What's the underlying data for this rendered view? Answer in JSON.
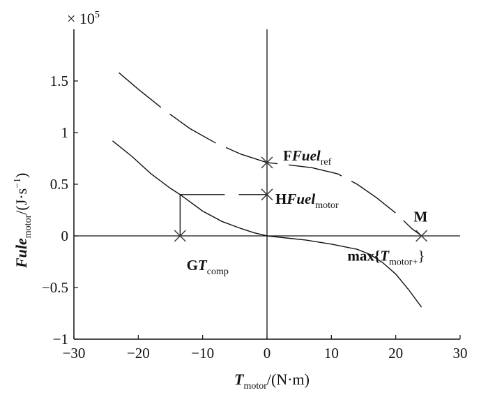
{
  "chart_data": {
    "type": "line",
    "xlabel": {
      "base": "T",
      "sub": "motor",
      "rest": "/(N·m)"
    },
    "ylabel": {
      "base": "Fule",
      "sub": "motor",
      "rest": "/(J·s",
      "sup": "−1",
      "close": ")"
    },
    "y_multiplier": {
      "prefix": "× 10",
      "exp": "5"
    },
    "xlim": [
      -30,
      30
    ],
    "ylim": [
      -1,
      2
    ],
    "x_ticks": [
      -30,
      -20,
      -10,
      0,
      10,
      20,
      30
    ],
    "x_tick_labels": [
      "−30",
      "−20",
      "−10",
      "0",
      "10",
      "20",
      "30"
    ],
    "y_ticks": [
      -1,
      -0.5,
      0,
      0.5,
      1,
      1.5
    ],
    "y_tick_labels": [
      "−1",
      "−0.5",
      "0",
      "0.5",
      "1",
      "1.5"
    ],
    "series": [
      {
        "style": "dashed",
        "x": [
          -23,
          -20,
          -16,
          -12,
          -8,
          -4,
          0,
          3,
          7,
          11,
          14,
          17,
          20,
          22.5,
          24
        ],
        "y": [
          1.58,
          1.42,
          1.22,
          1.04,
          0.9,
          0.79,
          0.71,
          0.69,
          0.66,
          0.6,
          0.5,
          0.37,
          0.22,
          0.07,
          0.0
        ]
      },
      {
        "style": "solid",
        "x": [
          -24,
          -21,
          -18,
          -15,
          -13.5,
          -10,
          -7,
          -4,
          -2,
          0,
          3,
          6,
          10,
          14,
          16,
          18,
          20,
          22,
          24
        ],
        "y": [
          0.92,
          0.77,
          0.6,
          0.46,
          0.4,
          0.24,
          0.14,
          0.07,
          0.03,
          0.0,
          -0.02,
          -0.04,
          -0.08,
          -0.13,
          -0.18,
          -0.26,
          -0.37,
          -0.52,
          -0.69
        ]
      },
      {
        "style": "dashed-segment",
        "x": [
          -13.5,
          0
        ],
        "y": [
          0.4,
          0.4
        ]
      }
    ],
    "markers": [
      {
        "x": 0,
        "y": 0.71
      },
      {
        "x": 0,
        "y": 0.4
      },
      {
        "x": -13.5,
        "y": 0.0
      },
      {
        "x": 24,
        "y": 0.0
      }
    ],
    "annotations": [
      {
        "pre": "F",
        "italic": "Fuel",
        "sub": "ref",
        "x": 2.5,
        "y": 0.73
      },
      {
        "pre": "H",
        "italic": "Fuel",
        "sub": "motor",
        "x": 1.3,
        "y": 0.31
      },
      {
        "pre": "G",
        "italic": "T",
        "sub": "comp",
        "x": -12.5,
        "y": -0.33
      },
      {
        "pre": "M",
        "italic": "",
        "sub": "",
        "x": 22.8,
        "y": 0.14
      },
      {
        "pre": "max{",
        "italic": "T",
        "sub": "motor+",
        "post": "}",
        "x": 12.5,
        "y": -0.24
      }
    ]
  }
}
